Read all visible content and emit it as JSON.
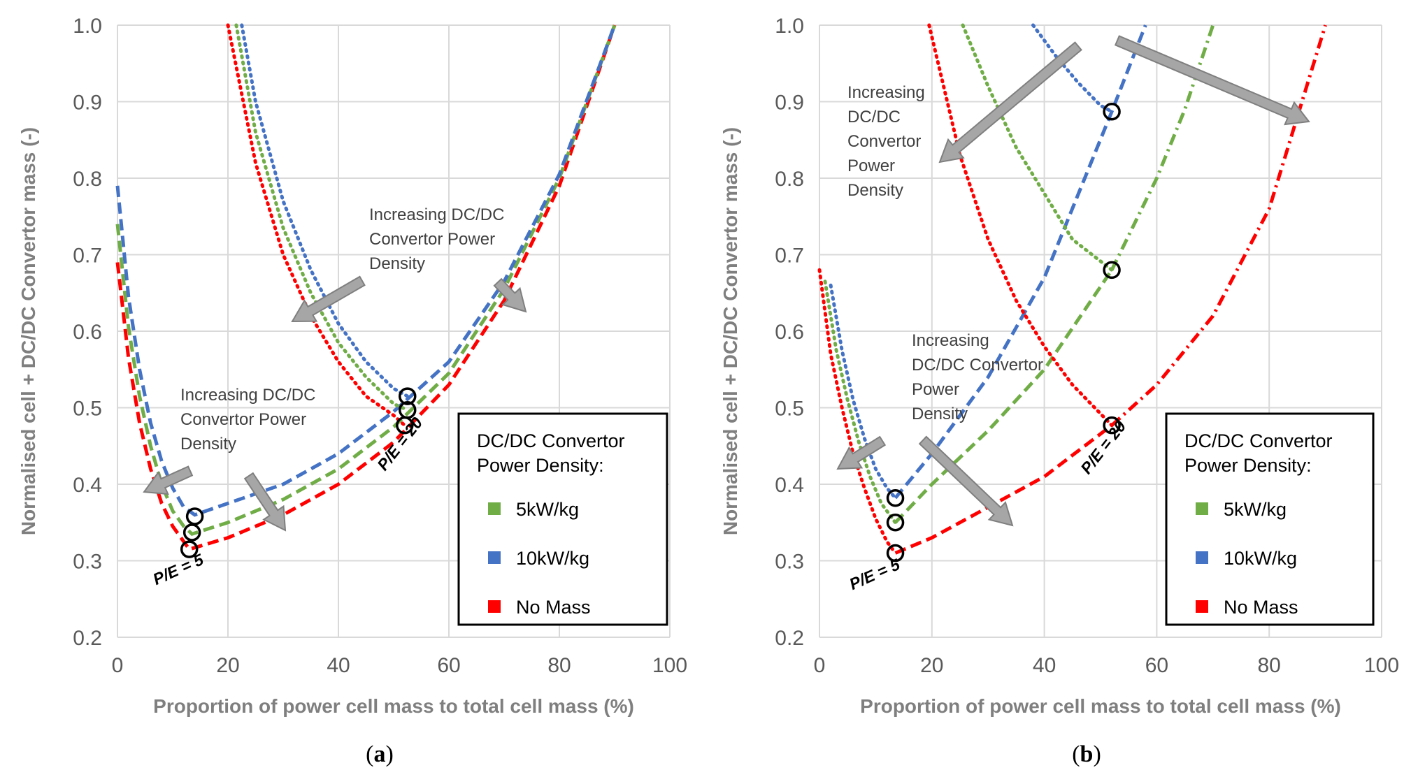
{
  "chart_data": [
    {
      "type": "line",
      "panel_label": "a",
      "xlabel": "Proportion of power cell mass to total cell mass (%)",
      "ylabel": "Normalised cell + DC/DC Convertor mass (-)",
      "xlim": [
        0,
        100
      ],
      "ylim": [
        0.2,
        1.0
      ],
      "xticks": [
        "0",
        "20",
        "40",
        "60",
        "80",
        "100"
      ],
      "yticks": [
        "0.2",
        "0.3",
        "0.4",
        "0.5",
        "0.6",
        "0.7",
        "0.8",
        "0.9",
        "1.0"
      ],
      "grid": true,
      "legend": {
        "position": "bottom-right",
        "title": [
          "DC/DC Convertor",
          "Power Density:"
        ],
        "entries": [
          {
            "label": "5kW/kg",
            "color": "#70ad47"
          },
          {
            "label": "10kW/kg",
            "color": "#4472c4"
          },
          {
            "label": "No Mass",
            "color": "#ff0000"
          }
        ]
      },
      "annotations": [
        {
          "lines": [
            "Increasing DC/DC",
            "Convertor Power",
            "Density"
          ]
        },
        {
          "lines": [
            "Increasing DC/DC",
            "Convertor Power",
            "Density"
          ]
        }
      ],
      "pe_labels": [
        "P/E = 5",
        "P/E = 20"
      ],
      "series": [
        {
          "name": "No Mass",
          "group": "P/E = 5",
          "style": "dashed",
          "color": "#ff0000",
          "x": [
            0,
            2,
            4,
            6,
            8,
            10,
            12,
            13,
            20,
            30,
            40,
            50,
            60,
            70,
            80,
            90
          ],
          "y": [
            0.69,
            0.565,
            0.48,
            0.42,
            0.375,
            0.345,
            0.325,
            0.315,
            0.33,
            0.36,
            0.4,
            0.455,
            0.53,
            0.64,
            0.79,
            1.0
          ]
        },
        {
          "name": "5kW/kg",
          "group": "P/E = 5",
          "style": "dashed",
          "color": "#70ad47",
          "x": [
            0,
            2,
            4,
            6,
            8,
            10,
            12,
            13.5,
            20,
            30,
            40,
            50,
            60,
            70,
            80,
            90
          ],
          "y": [
            0.74,
            0.605,
            0.515,
            0.45,
            0.4,
            0.365,
            0.345,
            0.335,
            0.35,
            0.38,
            0.42,
            0.475,
            0.545,
            0.655,
            0.8,
            1.0
          ]
        },
        {
          "name": "10kW/kg",
          "group": "P/E = 5",
          "style": "dashed",
          "color": "#4472c4",
          "x": [
            0,
            2,
            4,
            6,
            8,
            10,
            12,
            14,
            20,
            30,
            40,
            50,
            60,
            70,
            80,
            90
          ],
          "y": [
            0.79,
            0.645,
            0.55,
            0.48,
            0.43,
            0.395,
            0.37,
            0.36,
            0.375,
            0.4,
            0.44,
            0.495,
            0.56,
            0.665,
            0.805,
            1.0
          ]
        },
        {
          "name": "No Mass",
          "group": "P/E = 20",
          "style": "dotted",
          "color": "#ff0000",
          "x": [
            20,
            25,
            30,
            35,
            40,
            45,
            50,
            52
          ],
          "y": [
            1.0,
            0.82,
            0.7,
            0.62,
            0.56,
            0.515,
            0.49,
            0.477
          ]
        },
        {
          "name": "5kW/kg",
          "group": "P/E = 20",
          "style": "dotted",
          "color": "#70ad47",
          "x": [
            21.5,
            25,
            30,
            35,
            40,
            45,
            50,
            52.5
          ],
          "y": [
            1.0,
            0.86,
            0.735,
            0.65,
            0.585,
            0.54,
            0.505,
            0.497
          ]
        },
        {
          "name": "10kW/kg",
          "group": "P/E = 20",
          "style": "dotted",
          "color": "#4472c4",
          "x": [
            22.5,
            25,
            30,
            35,
            40,
            45,
            50,
            52.5
          ],
          "y": [
            1.0,
            0.9,
            0.77,
            0.68,
            0.61,
            0.56,
            0.525,
            0.515
          ]
        }
      ],
      "markers": [
        {
          "x": 13,
          "y": 0.315
        },
        {
          "x": 13.5,
          "y": 0.337
        },
        {
          "x": 14,
          "y": 0.358
        },
        {
          "x": 52,
          "y": 0.477
        },
        {
          "x": 52.5,
          "y": 0.497
        },
        {
          "x": 52.5,
          "y": 0.515
        }
      ]
    },
    {
      "type": "line",
      "panel_label": "b",
      "xlabel": "Proportion of power cell mass to total cell mass (%)",
      "ylabel": "Normalised cell + DC/DC Convertor mass (-)",
      "xlim": [
        0,
        100
      ],
      "ylim": [
        0.2,
        1.0
      ],
      "xticks": [
        "0",
        "20",
        "40",
        "60",
        "80",
        "100"
      ],
      "yticks": [
        "0.2",
        "0.3",
        "0.4",
        "0.5",
        "0.6",
        "0.7",
        "0.8",
        "0.9",
        "1.0"
      ],
      "grid": true,
      "legend": {
        "position": "bottom-right",
        "title": [
          "DC/DC Convertor",
          "Power Density:"
        ],
        "entries": [
          {
            "label": "5kW/kg",
            "color": "#70ad47"
          },
          {
            "label": "10kW/kg",
            "color": "#4472c4"
          },
          {
            "label": "No Mass",
            "color": "#ff0000"
          }
        ]
      },
      "annotations": [
        {
          "lines": [
            "Increasing",
            "DC/DC",
            "Convertor",
            "Power",
            "Density"
          ]
        },
        {
          "lines": [
            "Increasing",
            "DC/DC Convertor",
            "Power",
            "Density"
          ]
        }
      ],
      "pe_labels": [
        "P/E = 5",
        "P/E = 20"
      ],
      "series": [
        {
          "name": "No Mass",
          "group": "P/E = 5",
          "style": "dotted",
          "color": "#ff0000",
          "x": [
            0,
            2,
            4,
            6,
            8,
            10,
            12,
            13.5
          ],
          "y": [
            0.68,
            0.57,
            0.5,
            0.44,
            0.395,
            0.355,
            0.325,
            0.31
          ]
        },
        {
          "name": "No Mass",
          "group": "P/E = 5",
          "style": "dashed",
          "color": "#ff0000",
          "x": [
            13.5,
            20,
            30,
            40,
            52
          ],
          "y": [
            0.31,
            0.33,
            0.37,
            0.41,
            0.477
          ]
        },
        {
          "name": "5kW/kg",
          "group": "P/E = 5",
          "style": "dotted",
          "color": "#70ad47",
          "x": [
            1,
            3,
            5,
            7,
            9,
            11,
            13.5
          ],
          "y": [
            0.665,
            0.575,
            0.51,
            0.455,
            0.41,
            0.375,
            0.35
          ]
        },
        {
          "name": "5kW/kg",
          "group": "P/E = 5",
          "style": "dashed",
          "color": "#70ad47",
          "x": [
            13.5,
            20,
            30,
            40,
            52
          ],
          "y": [
            0.35,
            0.4,
            0.47,
            0.55,
            0.68
          ]
        },
        {
          "name": "10kW/kg",
          "group": "P/E = 5",
          "style": "dotted",
          "color": "#4472c4",
          "x": [
            2,
            4,
            6,
            8,
            10,
            12,
            13.5
          ],
          "y": [
            0.66,
            0.575,
            0.51,
            0.46,
            0.42,
            0.395,
            0.382
          ]
        },
        {
          "name": "10kW/kg",
          "group": "P/E = 5",
          "style": "dashed",
          "color": "#4472c4",
          "x": [
            13.5,
            20,
            30,
            40,
            52,
            58
          ],
          "y": [
            0.382,
            0.44,
            0.54,
            0.67,
            0.887,
            1.0
          ]
        },
        {
          "name": "No Mass",
          "group": "P/E = 20",
          "style": "dotted",
          "color": "#ff0000",
          "x": [
            19.5,
            25,
            30,
            35,
            40,
            45,
            52
          ],
          "y": [
            1.0,
            0.83,
            0.72,
            0.64,
            0.58,
            0.53,
            0.477
          ]
        },
        {
          "name": "No Mass",
          "group": "P/E = 20",
          "style": "dashdot",
          "color": "#ff0000",
          "x": [
            52,
            60,
            70,
            80,
            90
          ],
          "y": [
            0.477,
            0.53,
            0.62,
            0.76,
            1.0
          ]
        },
        {
          "name": "5kW/kg",
          "group": "P/E = 20",
          "style": "dotted",
          "color": "#70ad47",
          "x": [
            25.5,
            30,
            35,
            40,
            45,
            52
          ],
          "y": [
            1.0,
            0.92,
            0.84,
            0.78,
            0.72,
            0.68
          ]
        },
        {
          "name": "5kW/kg",
          "group": "P/E = 20",
          "style": "dashdot",
          "color": "#70ad47",
          "x": [
            52,
            56,
            60,
            65,
            70
          ],
          "y": [
            0.68,
            0.74,
            0.8,
            0.89,
            1.0
          ]
        },
        {
          "name": "10kW/kg",
          "group": "P/E = 20",
          "style": "dotted",
          "color": "#4472c4",
          "x": [
            38,
            42,
            46,
            50,
            52
          ],
          "y": [
            1.0,
            0.96,
            0.925,
            0.895,
            0.887
          ]
        }
      ],
      "markers": [
        {
          "x": 13.5,
          "y": 0.31
        },
        {
          "x": 13.5,
          "y": 0.35
        },
        {
          "x": 13.5,
          "y": 0.382
        },
        {
          "x": 52,
          "y": 0.477
        },
        {
          "x": 52,
          "y": 0.68
        },
        {
          "x": 52,
          "y": 0.887
        }
      ]
    }
  ]
}
